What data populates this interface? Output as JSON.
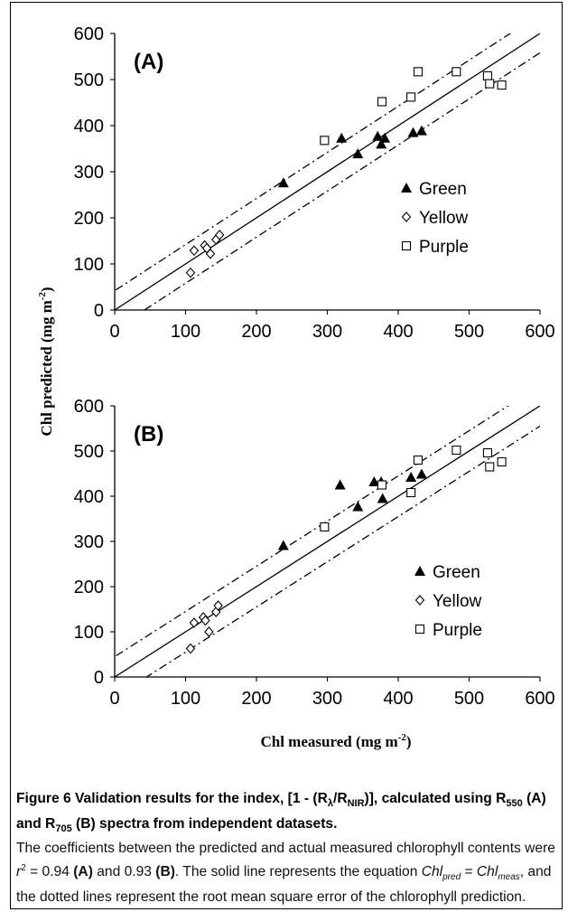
{
  "axis_titles": {
    "y": "Chl predicted (mg m-2)",
    "x": "Chl measured (mg m-2)"
  },
  "caption": {
    "title": "Figure 6 Validation results for the index, [1 - (Rλ/RNIR)], calculated using R550 (A) and R705 (B) spectra from independent datasets.",
    "body": "The coefficients between the predicted and actual measured chlorophyll contents were r2 = 0.94 (A) and 0.93 (B). The solid line represents the equation Chlpred = Chlmeas, and the dotted lines represent the root mean square error of the chlorophyll prediction."
  },
  "chart_data": [
    {
      "type": "scatter",
      "panel_label": "(A)",
      "xlabel": "Chl measured (mg m-2)",
      "ylabel": "Chl predicted (mg m-2)",
      "xlim": [
        0,
        600
      ],
      "ylim": [
        0,
        600
      ],
      "xticks": [
        "0",
        "100",
        "200",
        "300",
        "400",
        "500",
        "600"
      ],
      "yticks": [
        "0",
        "100",
        "200",
        "300",
        "400",
        "500",
        "600"
      ],
      "grid": false,
      "legend_position": "right",
      "lines": [
        {
          "style": "solid",
          "intercept": 0,
          "slope": 1
        },
        {
          "style": "dash-dot",
          "intercept": 42,
          "slope": 1
        },
        {
          "style": "dash-dot",
          "intercept": -42,
          "slope": 1
        }
      ],
      "series": [
        {
          "name": "Green",
          "marker": "filled-triangle",
          "points": [
            [
              238,
              276
            ],
            [
              320,
              373
            ],
            [
              343,
              339
            ],
            [
              371,
              377
            ],
            [
              376,
              360
            ],
            [
              381,
              373
            ],
            [
              421,
              385
            ],
            [
              433,
              389
            ]
          ]
        },
        {
          "name": "Yellow",
          "marker": "open-diamond",
          "points": [
            [
              107,
              81
            ],
            [
              112,
              129
            ],
            [
              127,
              140
            ],
            [
              130,
              134
            ],
            [
              135,
              122
            ],
            [
              143,
              153
            ],
            [
              148,
              163
            ]
          ]
        },
        {
          "name": "Purple",
          "marker": "open-square",
          "points": [
            [
              296,
              368
            ],
            [
              377,
              452
            ],
            [
              418,
              462
            ],
            [
              428,
              517
            ],
            [
              482,
              517
            ],
            [
              526,
              508
            ],
            [
              529,
              491
            ],
            [
              546,
              488
            ]
          ]
        }
      ]
    },
    {
      "type": "scatter",
      "panel_label": "(B)",
      "xlabel": "Chl measured (mg m-2)",
      "ylabel": "Chl predicted (mg m-2)",
      "xlim": [
        0,
        600
      ],
      "ylim": [
        0,
        600
      ],
      "xticks": [
        "0",
        "100",
        "200",
        "300",
        "400",
        "500",
        "600"
      ],
      "yticks": [
        "0",
        "100",
        "200",
        "300",
        "400",
        "500",
        "600"
      ],
      "grid": false,
      "legend_position": "right",
      "lines": [
        {
          "style": "solid",
          "intercept": 0,
          "slope": 1
        },
        {
          "style": "dash-dot",
          "intercept": 45,
          "slope": 1
        },
        {
          "style": "dash-dot",
          "intercept": -45,
          "slope": 1
        }
      ],
      "series": [
        {
          "name": "Green",
          "marker": "filled-triangle",
          "points": [
            [
              238,
              291
            ],
            [
              318,
              425
            ],
            [
              343,
              377
            ],
            [
              366,
              432
            ],
            [
              376,
              432
            ],
            [
              378,
              395
            ],
            [
              418,
              442
            ],
            [
              433,
              449
            ]
          ]
        },
        {
          "name": "Yellow",
          "marker": "open-diamond",
          "points": [
            [
              107,
              63
            ],
            [
              112,
              120
            ],
            [
              125,
              132
            ],
            [
              128,
              125
            ],
            [
              133,
              100
            ],
            [
              143,
              144
            ],
            [
              146,
              158
            ]
          ]
        },
        {
          "name": "Purple",
          "marker": "open-square",
          "points": [
            [
              296,
              332
            ],
            [
              377,
              425
            ],
            [
              418,
              408
            ],
            [
              428,
              480
            ],
            [
              482,
              502
            ],
            [
              526,
              496
            ],
            [
              529,
              465
            ],
            [
              546,
              476
            ]
          ]
        }
      ]
    }
  ]
}
